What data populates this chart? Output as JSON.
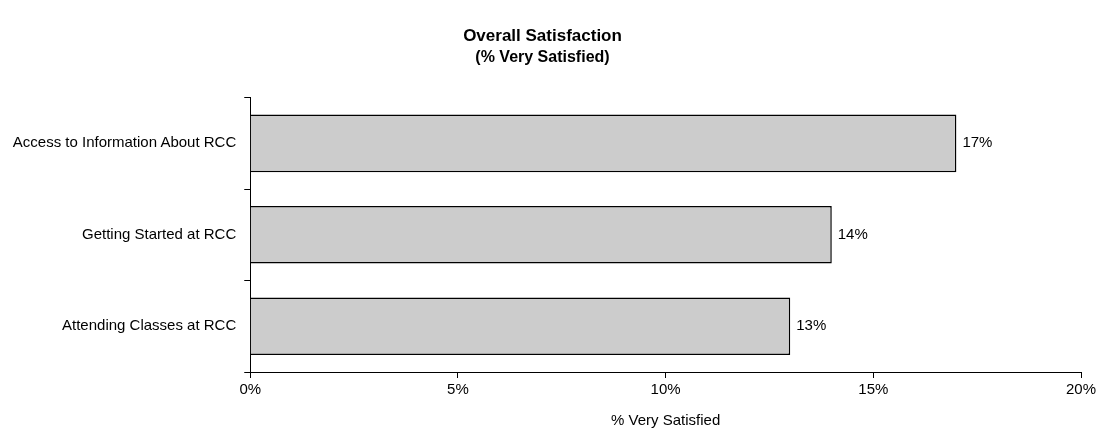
{
  "chart_data": {
    "type": "bar",
    "orientation": "horizontal",
    "title": "Overall Satisfaction",
    "subtitle": "(% Very Satisfied)",
    "xlabel": "% Very Satisfied",
    "categories": [
      "Access to Information About RCC",
      "Getting Started at RCC",
      "Attending Classes at RCC"
    ],
    "values": [
      17,
      14,
      13
    ],
    "value_labels": [
      "17%",
      "14%",
      "13%"
    ],
    "color": "#cccccc",
    "xlim": [
      0,
      20
    ],
    "xticks": [
      {
        "value": 0,
        "label": "0%"
      },
      {
        "value": 5,
        "label": "5%"
      },
      {
        "value": 10,
        "label": "10%"
      },
      {
        "value": 15,
        "label": "15%"
      },
      {
        "value": 20,
        "label": "20%"
      }
    ],
    "grid": false,
    "legend": false
  }
}
